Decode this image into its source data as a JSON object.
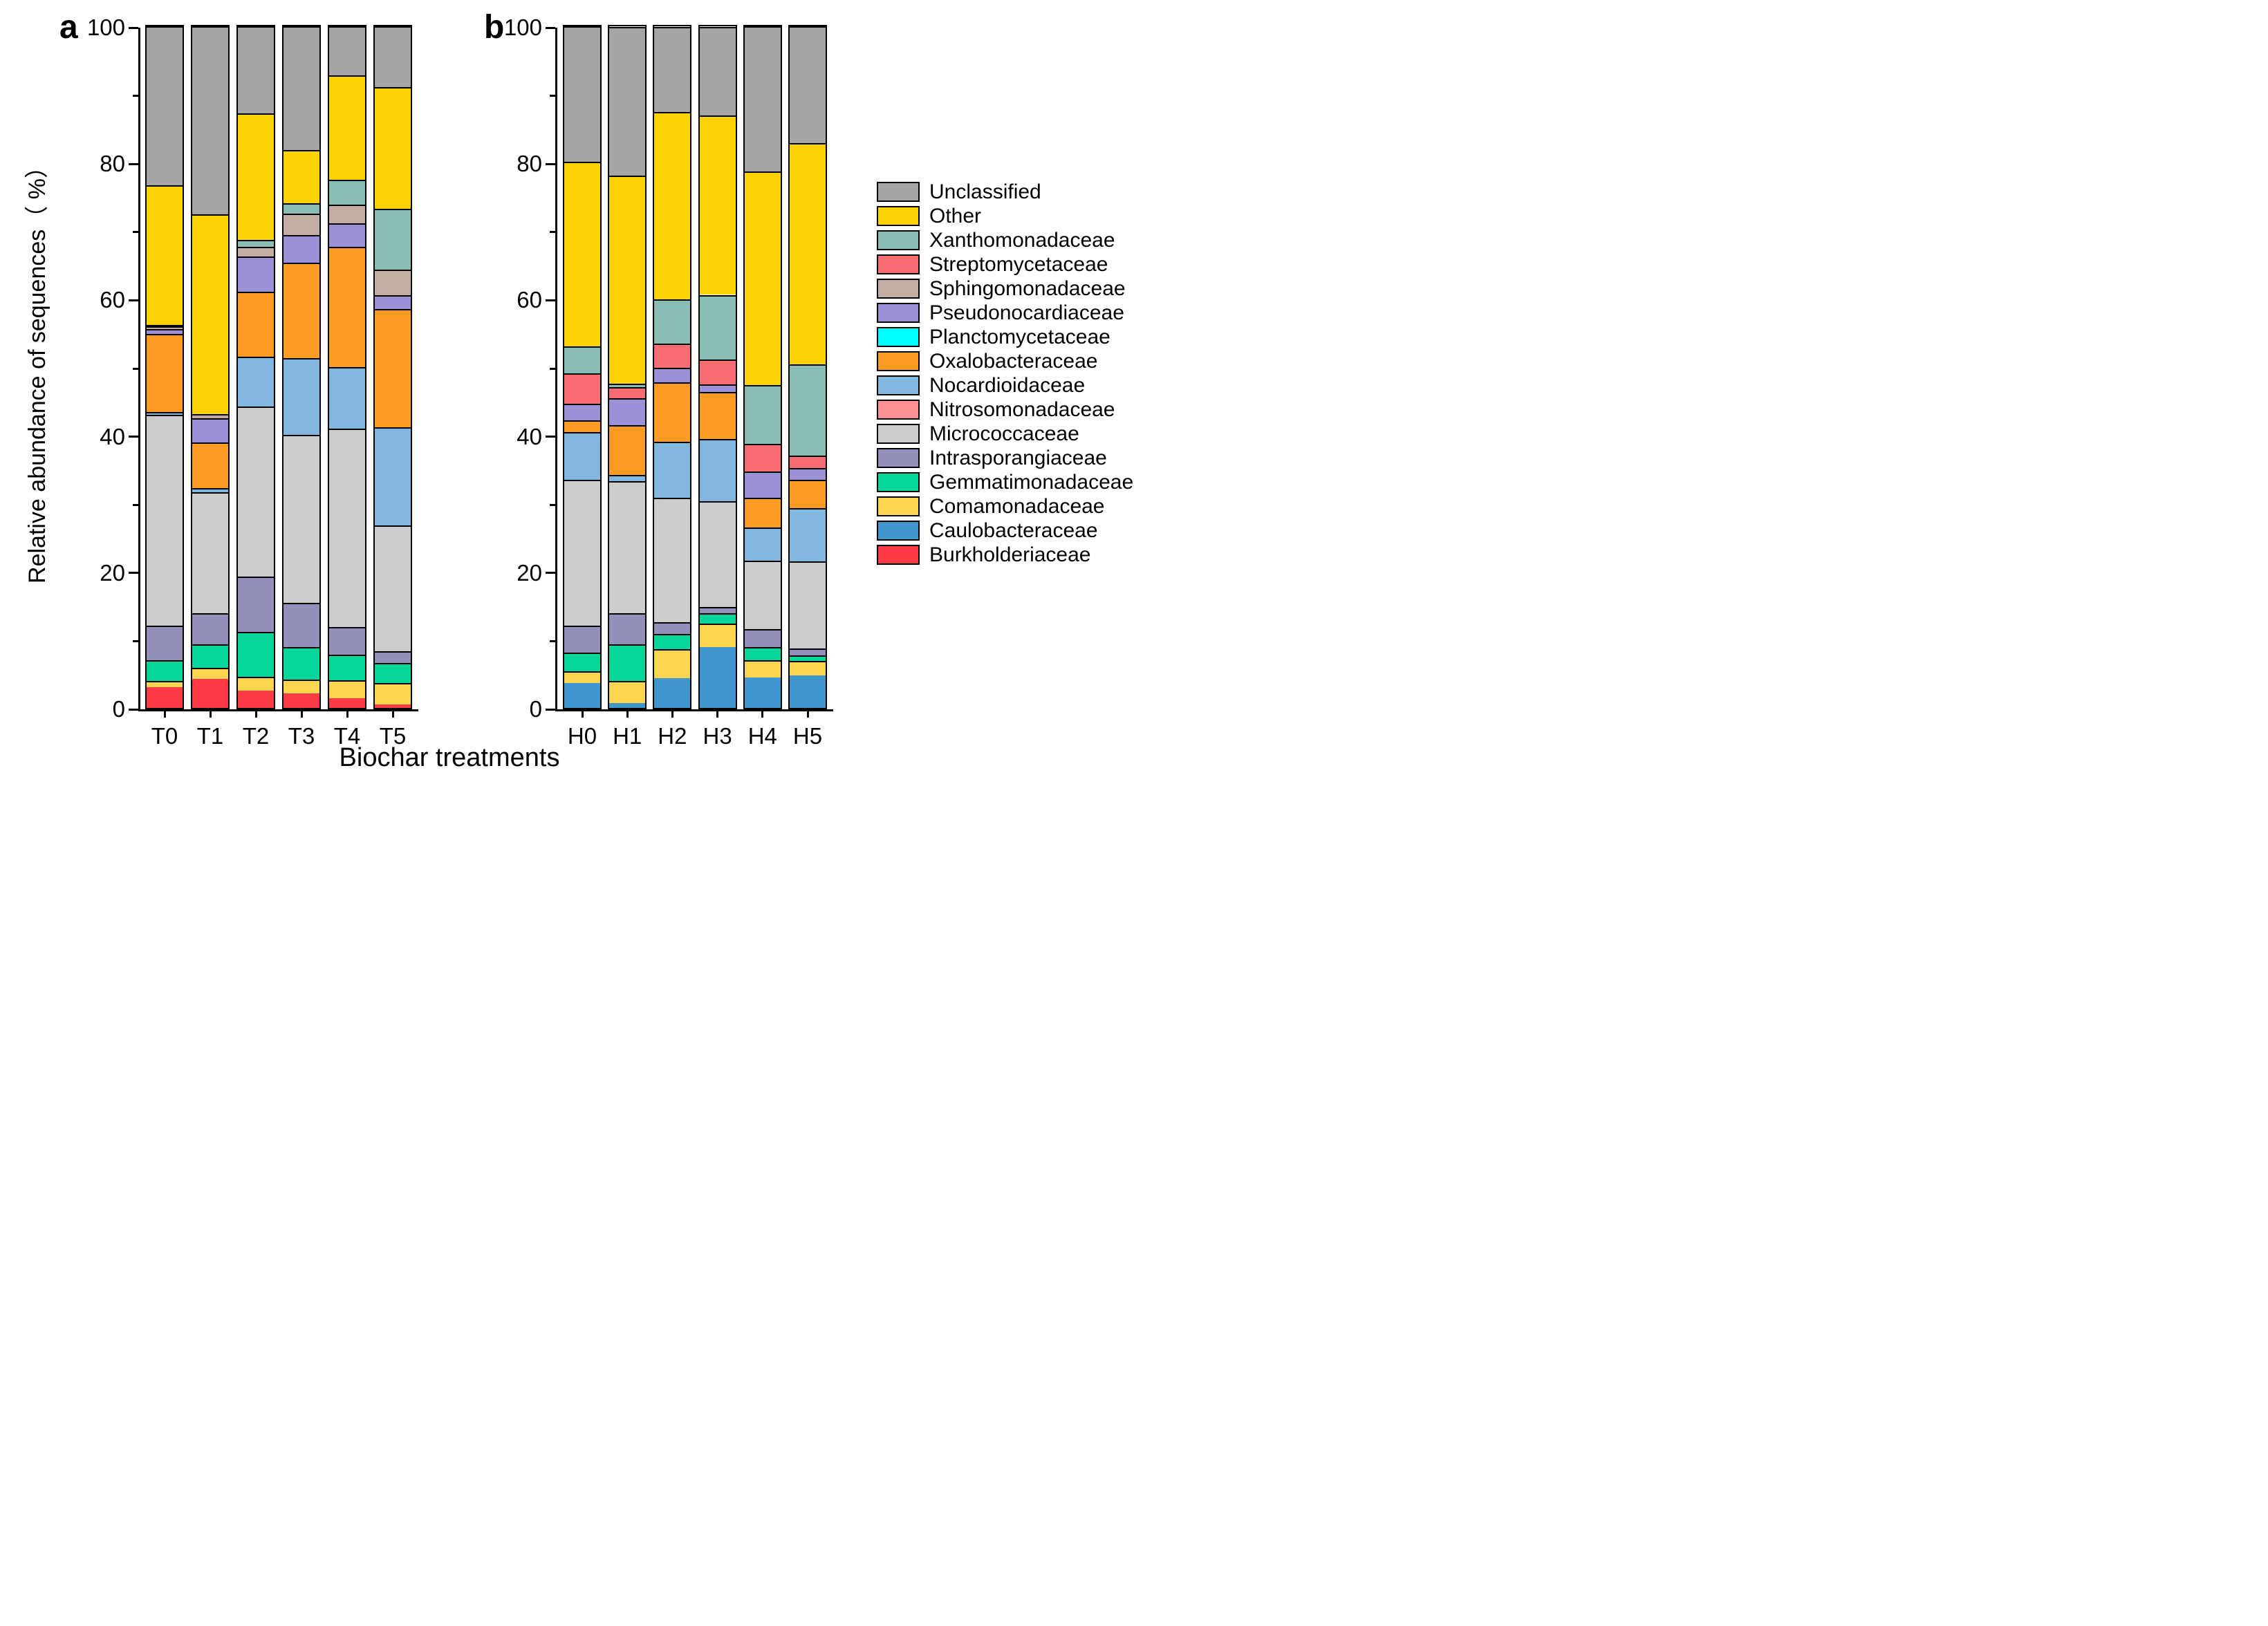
{
  "figure": {
    "panel_a_label": "a",
    "panel_b_label": "b",
    "y_axis_title": "Relative abundance of sequences（ %）",
    "x_axis_title": "Biochar treatments"
  },
  "chart_data": {
    "type": "bar",
    "stacked": true,
    "unit": "%",
    "title": "",
    "xlabel": "Biochar treatments",
    "ylabel": "Relative abundance of sequences（ %）",
    "ylim": [
      0,
      100
    ],
    "y_major_ticks": [
      0,
      20,
      40,
      60,
      80,
      100
    ],
    "y_minor_ticks": [
      10,
      30,
      50,
      70,
      90
    ],
    "grid": false,
    "legend_position": "right",
    "stack_order": "bottom_to_top",
    "legend": [
      {
        "label": "Unclassified",
        "color": "#A5A5A5"
      },
      {
        "label": "Other",
        "color": "#FFD203"
      },
      {
        "label": "Xanthomonadaceae",
        "color": "#8ABDB4"
      },
      {
        "label": "Streptomycetaceae",
        "color": "#F76D71"
      },
      {
        "label": "Sphingomonadaceae",
        "color": "#C3ACA3"
      },
      {
        "label": "Pseudonocardiaceae",
        "color": "#9A91D6"
      },
      {
        "label": "Planctomycetaceae",
        "color": "#00FFFF"
      },
      {
        "label": "Oxalobacteraceae",
        "color": "#FC9C24"
      },
      {
        "label": "Nocardioidaceae",
        "color": "#82B8DF"
      },
      {
        "label": "Nitrosomonadaceae",
        "color": "#FC9094"
      },
      {
        "label": "Micrococcaceae",
        "color": "#CDCDCD"
      },
      {
        "label": "Intrasporangiaceae",
        "color": "#9390BB"
      },
      {
        "label": "Gemmatimonadaceae",
        "color": "#07D69B"
      },
      {
        "label": "Comamonadaceae",
        "color": "#FDD550"
      },
      {
        "label": "Caulobacteraceae",
        "color": "#3F97CE"
      },
      {
        "label": "Burkholderiaceae",
        "color": "#FC3B45"
      }
    ],
    "panels": [
      {
        "label": "a",
        "categories": [
          "T0",
          "T1",
          "T2",
          "T3",
          "T4",
          "T5"
        ],
        "series": [
          {
            "name": "Burkholderiaceae",
            "color": "#FC3B45",
            "values": [
              3.0,
              4.3,
              2.5,
              2.1,
              1.4,
              0.5
            ]
          },
          {
            "name": "Caulobacteraceae",
            "color": "#3F97CE",
            "values": [
              0,
              0,
              0,
              0,
              0,
              0
            ]
          },
          {
            "name": "Comamonadaceae",
            "color": "#FDD550",
            "values": [
              1.0,
              1.6,
              2.1,
              2.1,
              2.7,
              3.2
            ]
          },
          {
            "name": "Gemmatimonadaceae",
            "color": "#07D69B",
            "values": [
              3.0,
              3.4,
              6.6,
              4.7,
              3.7,
              2.9
            ]
          },
          {
            "name": "Intrasporangiaceae",
            "color": "#9390BB",
            "values": [
              5.1,
              4.6,
              8.1,
              6.5,
              4.1,
              1.7
            ]
          },
          {
            "name": "Micrococcaceae",
            "color": "#CDCDCD",
            "values": [
              30.9,
              17.7,
              24.9,
              24.7,
              29.1,
              18.5
            ]
          },
          {
            "name": "Nitrosomonadaceae",
            "color": "#FC9094",
            "values": [
              0,
              0,
              0,
              0,
              0,
              0
            ]
          },
          {
            "name": "Nocardioidaceae",
            "color": "#82B8DF",
            "values": [
              0.4,
              0.7,
              7.3,
              11.2,
              9.0,
              14.4
            ]
          },
          {
            "name": "Oxalobacteraceae",
            "color": "#FC9C24",
            "values": [
              11.5,
              6.6,
              9.6,
              14.0,
              17.6,
              17.3
            ]
          },
          {
            "name": "Planctomycetaceae",
            "color": "#00FFFF",
            "values": [
              0,
              0,
              0,
              0,
              0,
              0
            ]
          },
          {
            "name": "Pseudonocardiaceae",
            "color": "#9A91D6",
            "values": [
              0.7,
              3.6,
              5.1,
              4.1,
              3.5,
              2.0
            ]
          },
          {
            "name": "Sphingomonadaceae",
            "color": "#C3ACA3",
            "values": [
              0.4,
              0.6,
              1.4,
              3.1,
              2.7,
              3.8
            ]
          },
          {
            "name": "Streptomycetaceae",
            "color": "#F76D71",
            "values": [
              0,
              0,
              0,
              0,
              0,
              0
            ]
          },
          {
            "name": "Xanthomonadaceae",
            "color": "#8ABDB4",
            "values": [
              0.2,
              0,
              1.1,
              1.5,
              3.7,
              8.9
            ]
          },
          {
            "name": "Other",
            "color": "#FFD203",
            "values": [
              20.5,
              29.3,
              18.5,
              7.8,
              15.3,
              17.9
            ]
          },
          {
            "name": "Unclassified",
            "color": "#A5A5A5",
            "values": [
              23.3,
              27.6,
              12.8,
              18.2,
              7.2,
              8.9
            ]
          }
        ]
      },
      {
        "label": "b",
        "categories": [
          "H0",
          "H1",
          "H2",
          "H3",
          "H4",
          "H5"
        ],
        "series": [
          {
            "name": "Burkholderiaceae",
            "color": "#FC3B45",
            "values": [
              0,
              0,
              0,
              0,
              0,
              0
            ]
          },
          {
            "name": "Caulobacteraceae",
            "color": "#3F97CE",
            "values": [
              3.7,
              0.7,
              4.4,
              8.9,
              4.5,
              4.8
            ]
          },
          {
            "name": "Comamonadaceae",
            "color": "#FDD550",
            "values": [
              1.7,
              3.3,
              4.2,
              3.5,
              2.5,
              2.1
            ]
          },
          {
            "name": "Gemmatimonadaceae",
            "color": "#07D69B",
            "values": [
              2.7,
              5.3,
              2.3,
              1.5,
              1.9,
              0.8
            ]
          },
          {
            "name": "Intrasporangiaceae",
            "color": "#9390BB",
            "values": [
              4.0,
              4.6,
              1.7,
              0.9,
              2.7,
              1.0
            ]
          },
          {
            "name": "Micrococcaceae",
            "color": "#CDCDCD",
            "values": [
              21.4,
              19.4,
              18.2,
              15.5,
              10.0,
              12.8
            ]
          },
          {
            "name": "Nitrosomonadaceae",
            "color": "#FC9094",
            "values": [
              0,
              0,
              0,
              0,
              0,
              0
            ]
          },
          {
            "name": "Nocardioidaceae",
            "color": "#82B8DF",
            "values": [
              7.0,
              0.9,
              8.2,
              9.2,
              4.9,
              7.8
            ]
          },
          {
            "name": "Oxalobacteraceae",
            "color": "#FC9C24",
            "values": [
              1.7,
              7.3,
              8.8,
              6.9,
              4.3,
              4.2
            ]
          },
          {
            "name": "Planctomycetaceae",
            "color": "#00FFFF",
            "values": [
              0,
              0,
              0,
              0,
              0,
              0
            ]
          },
          {
            "name": "Pseudonocardiaceae",
            "color": "#9A91D6",
            "values": [
              2.4,
              3.9,
              2.1,
              1.1,
              3.9,
              1.7
            ]
          },
          {
            "name": "Sphingomonadaceae",
            "color": "#C3ACA3",
            "values": [
              0,
              0,
              0,
              0,
              0,
              0
            ]
          },
          {
            "name": "Streptomycetaceae",
            "color": "#F76D71",
            "values": [
              4.5,
              1.7,
              3.6,
              3.6,
              4.0,
              1.8
            ]
          },
          {
            "name": "Xanthomonadaceae",
            "color": "#8ABDB4",
            "values": [
              3.9,
              0.5,
              6.4,
              9.5,
              8.7,
              13.4
            ]
          },
          {
            "name": "Other",
            "color": "#FFD203",
            "values": [
              27.1,
              30.5,
              27.5,
              26.3,
              31.3,
              32.5
            ]
          },
          {
            "name": "Unclassified",
            "color": "#A5A5A5",
            "values": [
              19.9,
              21.8,
              12.5,
              13.0,
              21.3,
              17.1
            ]
          }
        ]
      }
    ]
  }
}
